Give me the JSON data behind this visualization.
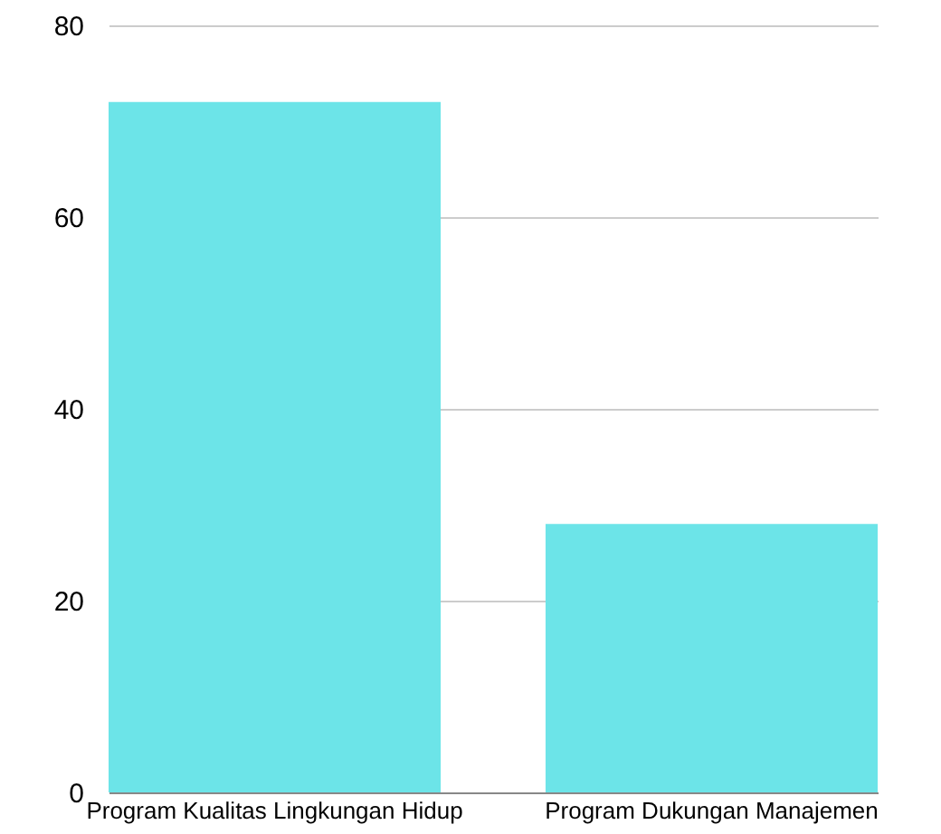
{
  "chart_data": {
    "type": "bar",
    "categories": [
      "Program Kualitas Lingkungan Hidup",
      "Program Dukungan Manajemen"
    ],
    "values": [
      72,
      28
    ],
    "color": "#6ce4e8",
    "ylim": [
      0,
      80
    ],
    "yticks": [
      0,
      20,
      40,
      60,
      80
    ],
    "grid": "y"
  }
}
